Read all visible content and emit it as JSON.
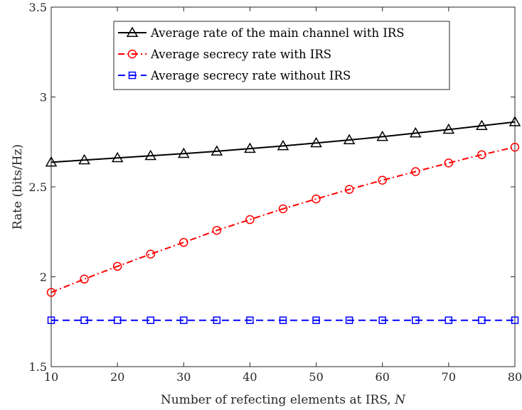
{
  "chart_data": {
    "type": "line",
    "title": "",
    "xlabel_text": "Number of refecting elements at IRS, ",
    "xlabel_var": "N",
    "ylabel": "Rate (bits/Hz)",
    "xlim": [
      10,
      80
    ],
    "ylim": [
      1.5,
      3.5
    ],
    "x_ticks": [
      "10",
      "20",
      "30",
      "40",
      "50",
      "60",
      "70",
      "80"
    ],
    "y_ticks": [
      "1.5",
      "2",
      "2.5",
      "3",
      "3.5"
    ],
    "grid": false,
    "legend_position": "top-center",
    "x": [
      10,
      15,
      20,
      25,
      30,
      35,
      40,
      45,
      50,
      55,
      60,
      65,
      70,
      75,
      80
    ],
    "series": [
      {
        "name": "Average rate of the main channel with IRS",
        "color": "#000000",
        "marker": "triangle",
        "line_style": "solid",
        "values": [
          2.637,
          2.649,
          2.661,
          2.673,
          2.685,
          2.698,
          2.713,
          2.728,
          2.744,
          2.761,
          2.779,
          2.799,
          2.819,
          2.84,
          2.861
        ]
      },
      {
        "name": "Average secrecy rate with IRS",
        "color": "#ff0000",
        "marker": "circle",
        "line_style": "dashdot",
        "values": [
          1.913,
          1.987,
          2.058,
          2.126,
          2.191,
          2.258,
          2.318,
          2.378,
          2.433,
          2.486,
          2.537,
          2.585,
          2.633,
          2.679,
          2.721
        ]
      },
      {
        "name": "Average secrecy rate without IRS",
        "color": "#0000ff",
        "marker": "square",
        "line_style": "dashed",
        "values": [
          1.758,
          1.758,
          1.758,
          1.758,
          1.758,
          1.758,
          1.758,
          1.758,
          1.758,
          1.758,
          1.758,
          1.758,
          1.758,
          1.758,
          1.758
        ]
      }
    ]
  }
}
